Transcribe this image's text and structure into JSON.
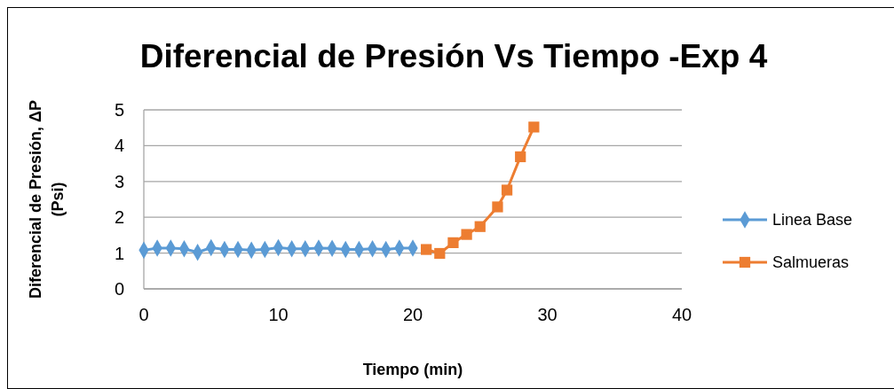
{
  "chart_data": {
    "type": "line",
    "title": "Diferencial de Presión Vs Tiempo -Exp 4",
    "xlabel": "Tiempo (min)",
    "ylabel": "Diferencial de Presión, ΔP (Psi)",
    "xlim": [
      0,
      40
    ],
    "xticks": [
      0,
      10,
      20,
      30,
      40
    ],
    "ylim": [
      0,
      5
    ],
    "yticks": [
      0,
      1,
      2,
      3,
      4,
      5
    ],
    "grid": "y",
    "legend": "right",
    "series": [
      {
        "name": "Linea Base",
        "color": "#5b9bd5",
        "marker": "diamond",
        "x": [
          0,
          1,
          2,
          3,
          4,
          5,
          6,
          7,
          8,
          9,
          10,
          11,
          12,
          13,
          14,
          15,
          16,
          17,
          18,
          19,
          20
        ],
        "values": [
          1.08,
          1.14,
          1.14,
          1.12,
          1.02,
          1.15,
          1.1,
          1.1,
          1.08,
          1.1,
          1.15,
          1.12,
          1.12,
          1.14,
          1.13,
          1.1,
          1.1,
          1.12,
          1.1,
          1.14,
          1.14
        ]
      },
      {
        "name": "Salmueras",
        "color": "#ed7d31",
        "marker": "square",
        "x": [
          21,
          22,
          23,
          24,
          25,
          26.3,
          27,
          28,
          29
        ],
        "values": [
          1.1,
          0.99,
          1.29,
          1.52,
          1.74,
          2.29,
          2.76,
          3.69,
          4.52
        ]
      }
    ]
  }
}
